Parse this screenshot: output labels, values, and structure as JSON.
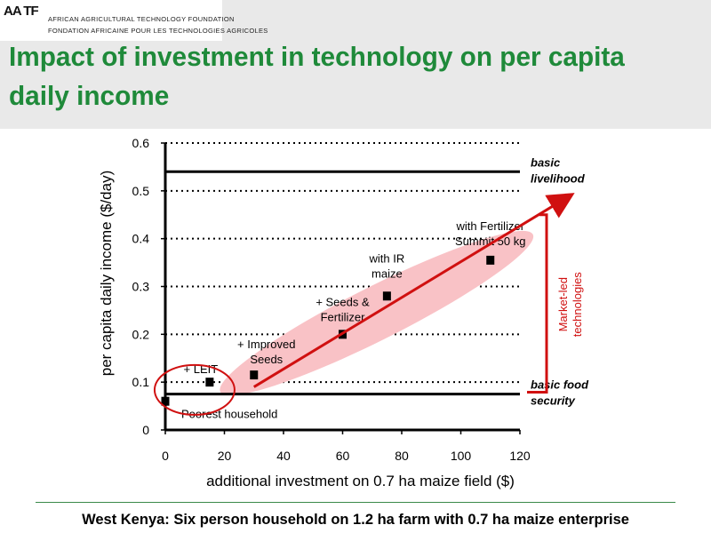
{
  "logo": {
    "mark": "AA TF",
    "line_en": "AFRICAN AGRICULTURAL TECHNOLOGY FOUNDATION",
    "line_fr": "FONDATION AFRICAINE POUR LES TECHNOLOGIES AGRICOLES"
  },
  "slide_title": "Impact of investment in technology on per capita daily income",
  "footer": "West Kenya: Six person household on 1.2 ha farm with 0.7 ha maize enterprise",
  "colors": {
    "title_green": "#1f8a3a",
    "arrow_red": "#d01010",
    "ellipse_pink": "#f9c2c6"
  },
  "chart_data": {
    "type": "scatter",
    "xlabel": "additional investment on 0.7 ha maize field ($)",
    "ylabel": "per capita daily income ($/day)",
    "xlim": [
      0,
      120
    ],
    "ylim": [
      0,
      0.6
    ],
    "x_ticks": [
      "0",
      "20",
      "40",
      "60",
      "80",
      "100",
      "120"
    ],
    "y_ticks": [
      "0",
      "0.1",
      "0.2",
      "0.3",
      "0.4",
      "0.5",
      "0.6"
    ],
    "grid": "horizontal dotted",
    "points": [
      {
        "x": 0,
        "y": 0.06,
        "label": "Poorest household"
      },
      {
        "x": 15,
        "y": 0.1,
        "label": "+ LEIT"
      },
      {
        "x": 30,
        "y": 0.115,
        "label": "+ Improved Seeds"
      },
      {
        "x": 60,
        "y": 0.2,
        "label": "+ Seeds & Fertilizer"
      },
      {
        "x": 75,
        "y": 0.28,
        "label": "with IR maize"
      },
      {
        "x": 110,
        "y": 0.355,
        "label": "with Fertilizer Summit 50 kg"
      }
    ],
    "reference_lines": [
      {
        "y": 0.54,
        "label": "basic livelihood"
      },
      {
        "y": 0.075,
        "label": "basic food security"
      }
    ],
    "annotations": [
      {
        "text": "Market-led technologies",
        "note": "red bracket between basic food security and upper arrow level"
      }
    ],
    "trend_arrow": {
      "from": [
        30,
        0.09
      ],
      "to": [
        137,
        0.49
      ]
    }
  }
}
